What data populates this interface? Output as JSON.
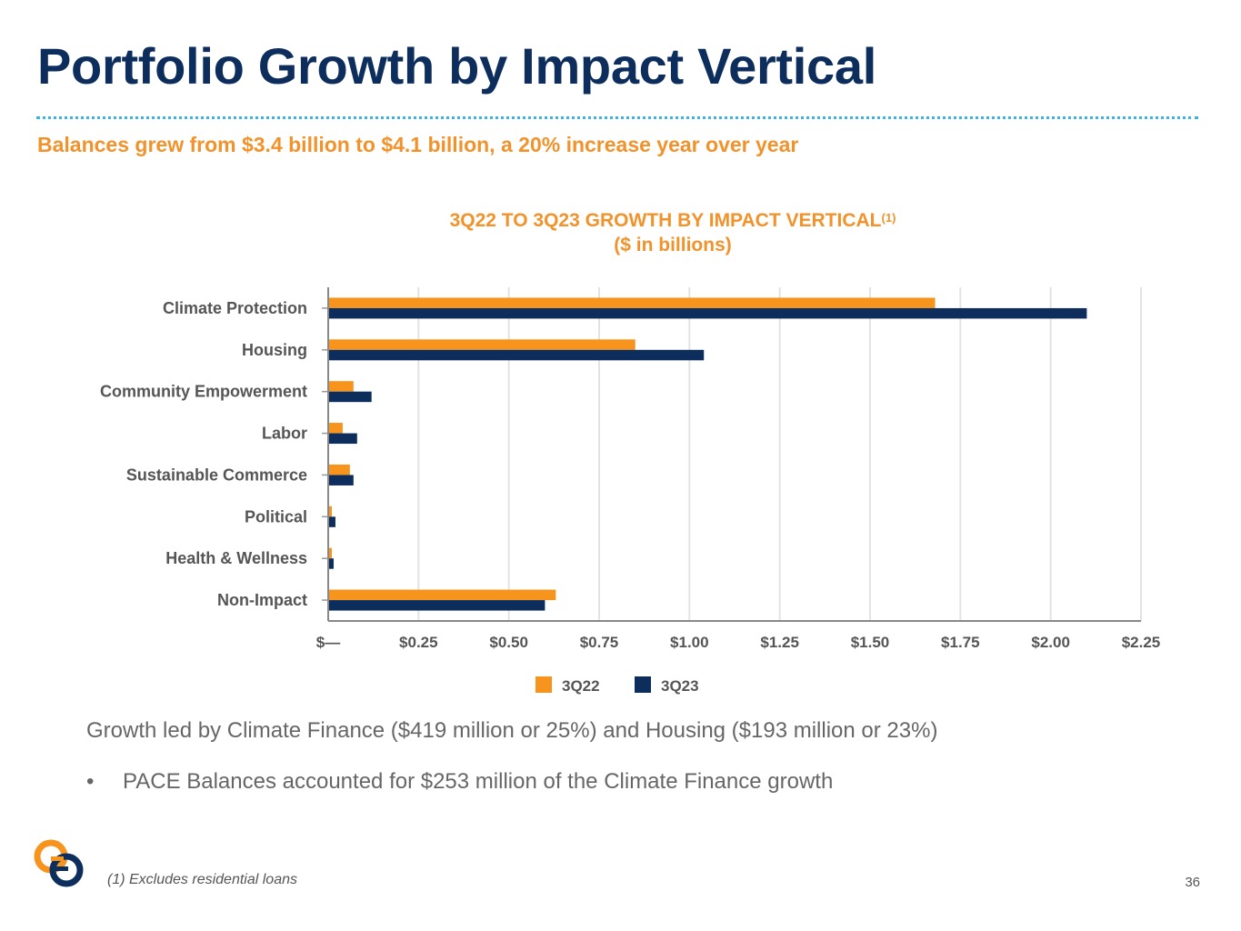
{
  "slide": {
    "title": "Portfolio Growth by Impact Vertical",
    "subtitle": "Balances grew from $3.4 billion to $4.1 billion, a 20% increase year over year",
    "chart_title": "3Q22 TO 3Q23 GROWTH BY IMPACT VERTICAL",
    "chart_title_sup": "(1)",
    "chart_subtitle": "($ in billions)",
    "bullet_main": "Growth led by Climate Finance ($419 million or 25%) and Housing ($193 million or 23%)",
    "bullet_sub_marker": "•",
    "bullet_sub": "PACE Balances accounted for $253 million of the Climate Finance growth",
    "footnote": "(1) Excludes residential loans",
    "page_number": "36"
  },
  "colors": {
    "title": "#0d2e5c",
    "accent_orange": "#f2922b",
    "series_3Q22": "#f7941d",
    "series_3Q23": "#0d2e5c",
    "divider": "#3fb3df",
    "gridline": "#e3e3e3"
  },
  "chart_data": {
    "type": "bar",
    "orientation": "horizontal",
    "categories": [
      "Climate Protection",
      "Housing",
      "Community Empowerment",
      "Labor",
      "Sustainable Commerce",
      "Political",
      "Health & Wellness",
      "Non-Impact"
    ],
    "series": [
      {
        "name": "3Q22",
        "values": [
          1.68,
          0.85,
          0.07,
          0.04,
          0.06,
          0.01,
          0.01,
          0.63
        ]
      },
      {
        "name": "3Q23",
        "values": [
          2.1,
          1.04,
          0.12,
          0.08,
          0.07,
          0.02,
          0.015,
          0.6
        ]
      }
    ],
    "xlim": [
      0,
      2.25
    ],
    "xticks": [
      0,
      0.25,
      0.5,
      0.75,
      1.0,
      1.25,
      1.5,
      1.75,
      2.0,
      2.25
    ],
    "xtick_labels": [
      "$—",
      "$0.25",
      "$0.50",
      "$0.75",
      "$1.00",
      "$1.25",
      "$1.50",
      "$1.75",
      "$2.00",
      "$2.25"
    ],
    "grid": true,
    "legend": "bottom"
  }
}
